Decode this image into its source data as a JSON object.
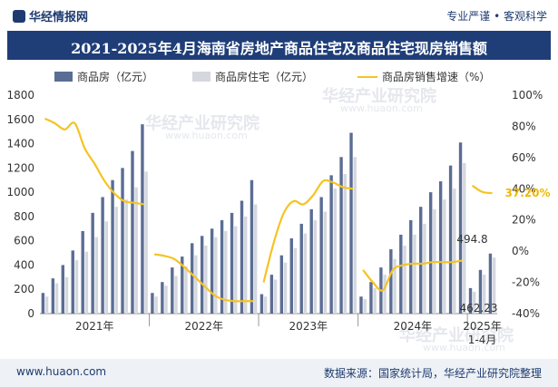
{
  "brand": {
    "name": "华经情报网",
    "tagline": "专业严谨 • 客观科学"
  },
  "title": "2021-2025年4月海南省房地产商品住宅及商品住宅现房销售额",
  "watermark": {
    "text": "华经产业研究院",
    "url": "www.huaon.com"
  },
  "footer": {
    "url": "www.huaon.com",
    "source": "数据来源：国家统计局，华经产业研究院整理"
  },
  "colors": {
    "bar1": "#5b6d94",
    "bar2": "#d4d7de",
    "line": "#f5c323",
    "title_bg": "#1f3e78"
  },
  "chart_data": {
    "type": "bar+line",
    "title": "2021-2025年4月海南省房地产商品住宅及商品住宅现房销售额",
    "legend": [
      "商品房（亿元）",
      "商品房住宅（亿元）",
      "商品房销售增速（%）"
    ],
    "y_left": {
      "min": 0,
      "max": 1800,
      "ticks": [
        "0",
        "200",
        "400",
        "600",
        "800",
        "1000",
        "1200",
        "1400",
        "1600",
        "1800"
      ]
    },
    "y_right": {
      "min": -40,
      "max": 100,
      "ticks": [
        "-40%",
        "-20%",
        "0%",
        "20%",
        "40%",
        "60%",
        "80%",
        "100%"
      ]
    },
    "x_groups": [
      "2021年",
      "2022年",
      "2023年",
      "2024年",
      "2025年\n1-4月"
    ],
    "series": [
      {
        "name": "商品房（亿元）",
        "values": [
          [
            170,
            290,
            400,
            520,
            680,
            830,
            960,
            1100,
            1200,
            1340,
            1560
          ],
          [
            170,
            260,
            380,
            470,
            580,
            640,
            700,
            770,
            830,
            930,
            1100
          ],
          [
            160,
            320,
            480,
            620,
            740,
            860,
            960,
            1140,
            1290,
            1490
          ],
          [
            140,
            260,
            380,
            530,
            650,
            770,
            880,
            1000,
            1090,
            1220,
            1410
          ],
          [
            210,
            360,
            494.8
          ]
        ]
      },
      {
        "name": "商品房住宅（亿元）",
        "values": [
          [
            140,
            250,
            300,
            440,
            510,
            630,
            760,
            880,
            940,
            1040,
            1170
          ],
          [
            140,
            230,
            310,
            390,
            480,
            560,
            630,
            680,
            720,
            800,
            900
          ],
          [
            140,
            280,
            420,
            540,
            660,
            770,
            840,
            1030,
            1150,
            1290
          ],
          [
            120,
            210,
            320,
            450,
            560,
            650,
            740,
            860,
            940,
            1030,
            1240
          ],
          [
            180,
            320,
            462.23
          ]
        ]
      },
      {
        "name": "商品房销售增速（%）",
        "values": [
          [
            85,
            82,
            78,
            82,
            66,
            56,
            45,
            37,
            32,
            31,
            30
          ],
          [
            -2,
            -3,
            -5,
            -10,
            -16,
            -22,
            -28,
            -31,
            -32,
            -32,
            -32
          ],
          [
            -20,
            5,
            24,
            32,
            30,
            36,
            45,
            44,
            41,
            40
          ],
          [
            -12,
            -20,
            -25,
            -12,
            -9,
            -8,
            -8,
            -7,
            -7,
            -7,
            -6
          ],
          [
            42,
            38,
            37.2
          ]
        ]
      }
    ],
    "data_labels": {
      "bar1_last": "494.8",
      "bar2_last": "462.23",
      "line_last": "37.20%"
    }
  }
}
